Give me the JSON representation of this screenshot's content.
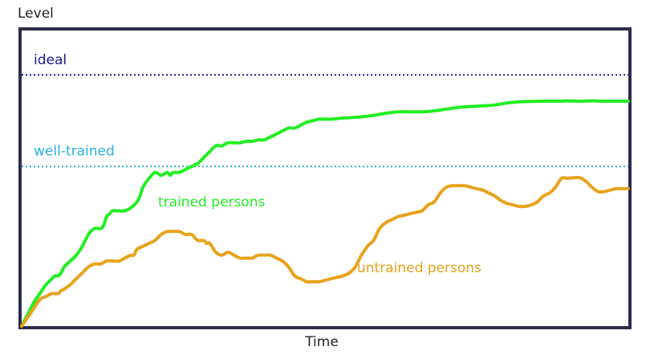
{
  "chart_data": {
    "type": "line",
    "ylabel": "Level",
    "xlabel": "Time",
    "xlim": [
      0,
      100
    ],
    "ylim": [
      0,
      100
    ],
    "grid": false,
    "reference_lines": [
      {
        "name": "ideal",
        "y": 85,
        "color": "#1a1a99",
        "style": "dotted"
      },
      {
        "name": "well-trained",
        "y": 54,
        "color": "#2ab0e0",
        "style": "dotted"
      }
    ],
    "series": [
      {
        "name": "trained persons",
        "color": "#22ee22",
        "x": [
          0,
          1,
          2,
          3,
          4,
          5,
          5.5,
          6,
          6.5,
          7,
          8,
          9,
          10,
          11,
          12,
          13,
          13.5,
          14,
          14.5,
          15,
          16,
          17,
          18,
          19,
          19.5,
          20,
          21,
          22,
          23,
          24,
          24.5,
          25,
          26,
          27,
          28,
          29,
          30,
          31,
          32,
          33,
          34,
          35,
          36,
          37,
          38,
          39,
          40,
          41,
          42,
          43,
          44,
          45,
          46,
          47,
          48,
          49,
          50,
          51,
          52,
          53,
          54,
          56,
          58,
          60,
          62,
          64,
          66,
          68,
          70,
          72,
          74,
          76,
          78,
          80,
          82,
          84,
          86,
          88,
          90,
          92,
          94,
          96,
          98,
          100
        ],
        "values": [
          0,
          4,
          8,
          11,
          14,
          16,
          17,
          17,
          18,
          20,
          22,
          24,
          27,
          31,
          33,
          33,
          34,
          37,
          38,
          39,
          39,
          39,
          40,
          42,
          44,
          47,
          50,
          52,
          51,
          52,
          51,
          52,
          52,
          53,
          54,
          55,
          57,
          59,
          61,
          61,
          62,
          62,
          62,
          62.5,
          62.5,
          63,
          63,
          64,
          65,
          66,
          67,
          67,
          68,
          69,
          69.5,
          70,
          70,
          70,
          70.2,
          70.4,
          70.5,
          70.8,
          71.3,
          72,
          72.5,
          72.5,
          72.5,
          72.8,
          73.4,
          74,
          74.3,
          74.5,
          74.8,
          75.5,
          75.9,
          76,
          76.1,
          76.1,
          76.2,
          76.1,
          76.2,
          76.1,
          76.1,
          76.1
        ]
      },
      {
        "name": "untrained persons",
        "color": "#e8a21c",
        "x": [
          0,
          1,
          2,
          3,
          4,
          5,
          6,
          6.5,
          7,
          8,
          9,
          10,
          11,
          12,
          13,
          14,
          15,
          16,
          17,
          18,
          18.5,
          19,
          20,
          21,
          22,
          23,
          24,
          25,
          26,
          27,
          28,
          29,
          30,
          30.5,
          31,
          32,
          33,
          34,
          35,
          36,
          37,
          38,
          39,
          40,
          41,
          42,
          43,
          44,
          45,
          46,
          47,
          48,
          49,
          50,
          51,
          52,
          53,
          54,
          55,
          56,
          57,
          58,
          59,
          60,
          61,
          62,
          63,
          64,
          65,
          66,
          67,
          68,
          69,
          70,
          71,
          72,
          73,
          74,
          75,
          76,
          77,
          78,
          79,
          80,
          81,
          82,
          83,
          84,
          85,
          86,
          87,
          88,
          89,
          90,
          91,
          92,
          93,
          94,
          95,
          96,
          97,
          98,
          99,
          100
        ],
        "values": [
          0,
          3,
          6,
          9,
          10,
          11,
          11,
          12,
          12.5,
          14,
          16,
          18,
          20,
          21,
          21,
          22,
          22,
          22,
          23,
          24,
          24,
          26,
          27,
          28,
          29,
          31,
          32,
          32,
          32,
          31,
          31,
          29,
          29,
          28,
          28,
          25,
          24,
          25,
          24,
          23,
          23,
          23,
          24,
          24,
          24,
          23,
          22,
          20,
          17,
          16,
          15,
          15,
          15,
          15.5,
          16,
          16.5,
          17,
          18,
          20,
          24,
          27,
          29,
          33,
          35,
          36,
          37,
          37.5,
          38,
          38.5,
          39,
          41,
          42,
          45,
          47,
          47.5,
          47.5,
          47.5,
          47,
          46.5,
          46,
          45,
          44,
          42.5,
          41.5,
          41,
          40.5,
          40.5,
          41,
          42,
          44,
          45,
          47,
          50,
          50,
          50.2,
          50.2,
          49,
          47,
          45.5,
          45.5,
          46,
          46.5,
          46.5,
          46.5
        ]
      }
    ]
  }
}
